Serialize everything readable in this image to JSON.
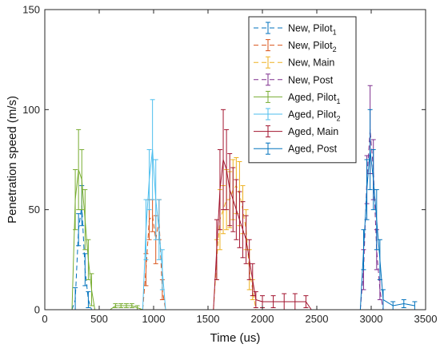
{
  "chart_data": {
    "type": "line",
    "xlabel": "Time (us)",
    "ylabel": "Penetration speed (m/s)",
    "xlim": [
      0,
      3500
    ],
    "ylim": [
      0,
      150
    ],
    "xticks": [
      "0",
      "500",
      "1000",
      "1500",
      "2000",
      "2500",
      "3000",
      "3500"
    ],
    "yticks": [
      "0",
      "50",
      "100",
      "150"
    ],
    "grid": false,
    "legend_position": "top-right",
    "series": [
      {
        "name": "New, Pilot",
        "name_sub": "1",
        "color": "#0072BD",
        "dash": "dashed",
        "x": [
          250,
          280,
          310,
          340,
          370,
          400,
          430,
          460,
          500,
          1000,
          1500,
          2000,
          2500,
          3000,
          3500
        ],
        "y": [
          0,
          5,
          40,
          52,
          20,
          5,
          0,
          0,
          0,
          0,
          0,
          0,
          0,
          0,
          0
        ],
        "err": [
          0,
          6,
          8,
          10,
          8,
          4,
          0,
          0,
          0,
          0,
          0,
          0,
          0,
          0,
          0
        ]
      },
      {
        "name": "New, Pilot",
        "name_sub": "2",
        "color": "#D95319",
        "dash": "dashed",
        "x": [
          900,
          930,
          960,
          990,
          1020,
          1050,
          1080,
          1110
        ],
        "y": [
          0,
          20,
          45,
          47,
          35,
          45,
          10,
          0
        ],
        "err": [
          0,
          8,
          10,
          8,
          12,
          10,
          5,
          0
        ]
      },
      {
        "name": "New, Main",
        "name_sub": "",
        "color": "#EDB120",
        "dash": "dashed",
        "x": [
          1550,
          1580,
          1610,
          1640,
          1670,
          1700,
          1730,
          1760,
          1790,
          1820,
          1850,
          1880,
          1910,
          1940
        ],
        "y": [
          0,
          25,
          45,
          50,
          55,
          55,
          60,
          62,
          58,
          50,
          40,
          20,
          10,
          0
        ],
        "err": [
          0,
          10,
          15,
          12,
          15,
          14,
          15,
          14,
          16,
          12,
          10,
          10,
          5,
          0
        ]
      },
      {
        "name": "New, Post",
        "name_sub": "",
        "color": "#7E2F8E",
        "dash": "dashed",
        "x": [
          2900,
          2930,
          2960,
          2990,
          3020,
          3050,
          3080,
          3110
        ],
        "y": [
          0,
          20,
          65,
          90,
          70,
          30,
          10,
          0
        ],
        "err": [
          0,
          10,
          12,
          22,
          15,
          10,
          5,
          0
        ]
      },
      {
        "name": "Aged, Pilot",
        "name_sub": "1",
        "color": "#77AC30",
        "dash": "solid",
        "x": [
          250,
          280,
          310,
          340,
          370,
          400,
          430,
          460,
          600,
          650,
          700,
          750,
          800,
          850,
          900
        ],
        "y": [
          0,
          55,
          70,
          65,
          45,
          25,
          10,
          0,
          0,
          2,
          2,
          2,
          2,
          1,
          0
        ],
        "err": [
          0,
          15,
          20,
          15,
          15,
          10,
          8,
          0,
          0,
          1,
          1,
          1,
          1,
          1,
          0
        ]
      },
      {
        "name": "Aged, Pilot",
        "name_sub": "2",
        "color": "#4DBEEE",
        "dash": "solid",
        "x": [
          900,
          930,
          960,
          990,
          1020,
          1050,
          1080,
          1110
        ],
        "y": [
          0,
          40,
          65,
          80,
          55,
          40,
          20,
          0
        ],
        "err": [
          0,
          15,
          15,
          25,
          20,
          15,
          10,
          0
        ]
      },
      {
        "name": "Aged, Main",
        "name_sub": "",
        "color": "#A2142F",
        "dash": "solid",
        "x": [
          1550,
          1580,
          1610,
          1640,
          1670,
          1700,
          1730,
          1760,
          1790,
          1820,
          1850,
          1880,
          1910,
          1940,
          2000,
          2100,
          2200,
          2300,
          2400,
          2450
        ],
        "y": [
          0,
          30,
          60,
          75,
          70,
          60,
          55,
          50,
          45,
          40,
          35,
          25,
          15,
          5,
          4,
          4,
          4,
          4,
          4,
          0
        ],
        "err": [
          0,
          15,
          20,
          25,
          20,
          18,
          16,
          15,
          14,
          14,
          12,
          10,
          8,
          4,
          3,
          3,
          4,
          4,
          3,
          0
        ]
      },
      {
        "name": "Aged, Post",
        "name_sub": "",
        "color": "#0072BD",
        "dash": "solid",
        "x": [
          2900,
          2930,
          2960,
          2990,
          3020,
          3050,
          3080,
          3110,
          3200,
          3300,
          3400
        ],
        "y": [
          0,
          30,
          60,
          80,
          65,
          45,
          25,
          5,
          2,
          3,
          2
        ],
        "err": [
          0,
          10,
          15,
          20,
          15,
          15,
          10,
          5,
          2,
          2,
          2
        ]
      }
    ]
  }
}
